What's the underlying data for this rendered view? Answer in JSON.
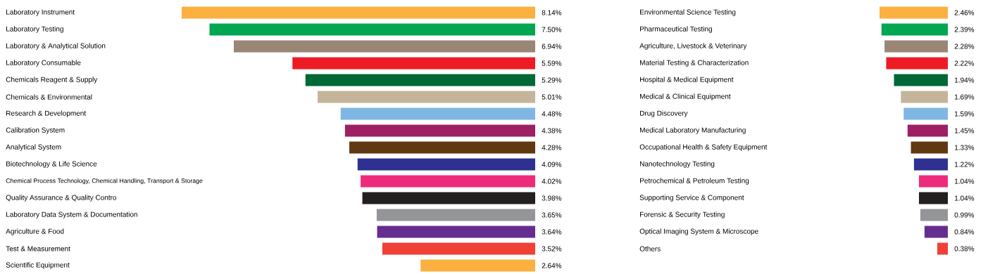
{
  "chart_data": [
    {
      "type": "bar",
      "orientation": "horizontal",
      "categories": [
        "Laboratory Instrument",
        "Laboratory Testing",
        "Laboratory & Analytical Solution",
        "Laboratory Consumable",
        "Chemicals Reagent & Supply",
        "Chemicals & Environmental",
        "Research & Development",
        "Calibration System",
        "Analytical System",
        "Biotechnology & Life Science",
        "Chemical Process Technology, Chemical Handling, Transport & Storage",
        "Quality Assurance & Quality Contro",
        "Laboratory Data System & Documentation",
        "Agriculture & Food",
        "Test & Measurement",
        "Scientific Equipment"
      ],
      "values": [
        8.14,
        7.5,
        6.94,
        5.59,
        5.29,
        5.01,
        4.48,
        4.38,
        4.28,
        4.09,
        4.02,
        3.98,
        3.65,
        3.64,
        3.52,
        2.64
      ],
      "value_labels": [
        "8.14%",
        "7.50%",
        "6.94%",
        "5.59%",
        "5.29%",
        "5.01%",
        "4.48%",
        "4.38%",
        "4.28%",
        "4.09%",
        "4.02%",
        "3.98%",
        "3.65%",
        "3.64%",
        "3.52%",
        "2.64%"
      ],
      "colors": [
        "#fbb040",
        "#00a651",
        "#998675",
        "#ed1c24",
        "#006837",
        "#c4b59a",
        "#7fb6e3",
        "#9e1f63",
        "#603913",
        "#2e3192",
        "#ee2a7b",
        "#231f20",
        "#939598",
        "#662d91",
        "#f04136",
        "#fbb040"
      ]
    },
    {
      "type": "bar",
      "orientation": "horizontal",
      "categories": [
        "Environmental Science Testing",
        "Pharmaceutical Testing",
        "Agriculture, Livestock & Veterinary",
        "Material Testing & Characterization",
        "Hospital & Medical Equipment",
        "Medical & Clinical Equipment",
        "Drug Discovery",
        "Medical Laboratory Manufacturing",
        "Occupational Health & Safety Equipment",
        "Nanotechnology Testing",
        "Petrochemical & Petroleum Testing",
        "Supporting Service & Component",
        "Forensic & Security Testing",
        "Optical Imaging System & Microscope",
        "Others"
      ],
      "values": [
        2.46,
        2.39,
        2.28,
        2.22,
        1.94,
        1.69,
        1.59,
        1.45,
        1.33,
        1.22,
        1.04,
        1.04,
        0.99,
        0.84,
        0.38
      ],
      "value_labels": [
        "2.46%",
        "2.39%",
        "2.28%",
        "2.22%",
        "1.94%",
        "1.69%",
        "1.59%",
        "1.45%",
        "1.33%",
        "1.22%",
        "1.04%",
        "1.04%",
        "0.99%",
        "0.84%",
        "0.38%"
      ],
      "colors": [
        "#fbb040",
        "#00a651",
        "#998675",
        "#ed1c24",
        "#006837",
        "#c4b59a",
        "#7fb6e3",
        "#9e1f63",
        "#603913",
        "#2e3192",
        "#ee2a7b",
        "#231f20",
        "#939598",
        "#662d91",
        "#f04136"
      ]
    }
  ]
}
